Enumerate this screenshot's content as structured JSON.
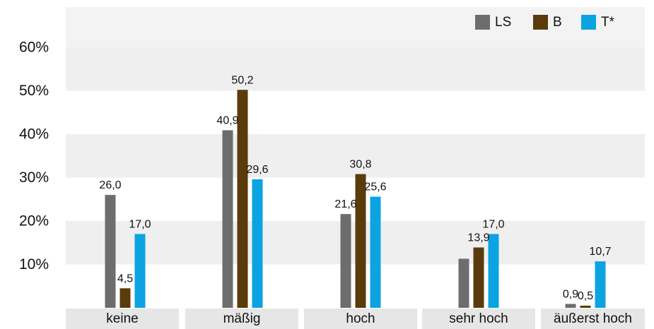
{
  "chart_data": {
    "type": "bar",
    "categories": [
      "keine",
      "mäßig",
      "hoch",
      "sehr hoch",
      "äußerst hoch"
    ],
    "series": [
      {
        "name": "LS",
        "color": "#6d6d6d",
        "values": [
          26.0,
          40.9,
          21.6,
          null,
          0.9
        ],
        "labels": [
          "26,0",
          "40,9",
          "21,6",
          "",
          "0,9"
        ]
      },
      {
        "name": "B",
        "color": "#5a3b0c",
        "values": [
          4.5,
          50.2,
          30.8,
          13.9,
          0.5
        ],
        "labels": [
          "4,5",
          "50,2",
          "30,8",
          "13,9",
          "0,5"
        ]
      },
      {
        "name": "T*",
        "color": "#0ba3e2",
        "values": [
          17.0,
          29.6,
          25.6,
          17.0,
          10.7
        ],
        "labels": [
          "17,0",
          "29,6",
          "25,6",
          "17,0",
          "10,7"
        ]
      }
    ],
    "yticks": [
      10,
      20,
      30,
      40,
      50,
      60
    ],
    "ytick_labels": [
      "10%",
      "20%",
      "30%",
      "40%",
      "50%",
      "60%"
    ],
    "ylim": [
      0,
      70
    ],
    "legend_position": "top-right",
    "grid": "alternating horizontal bands"
  }
}
